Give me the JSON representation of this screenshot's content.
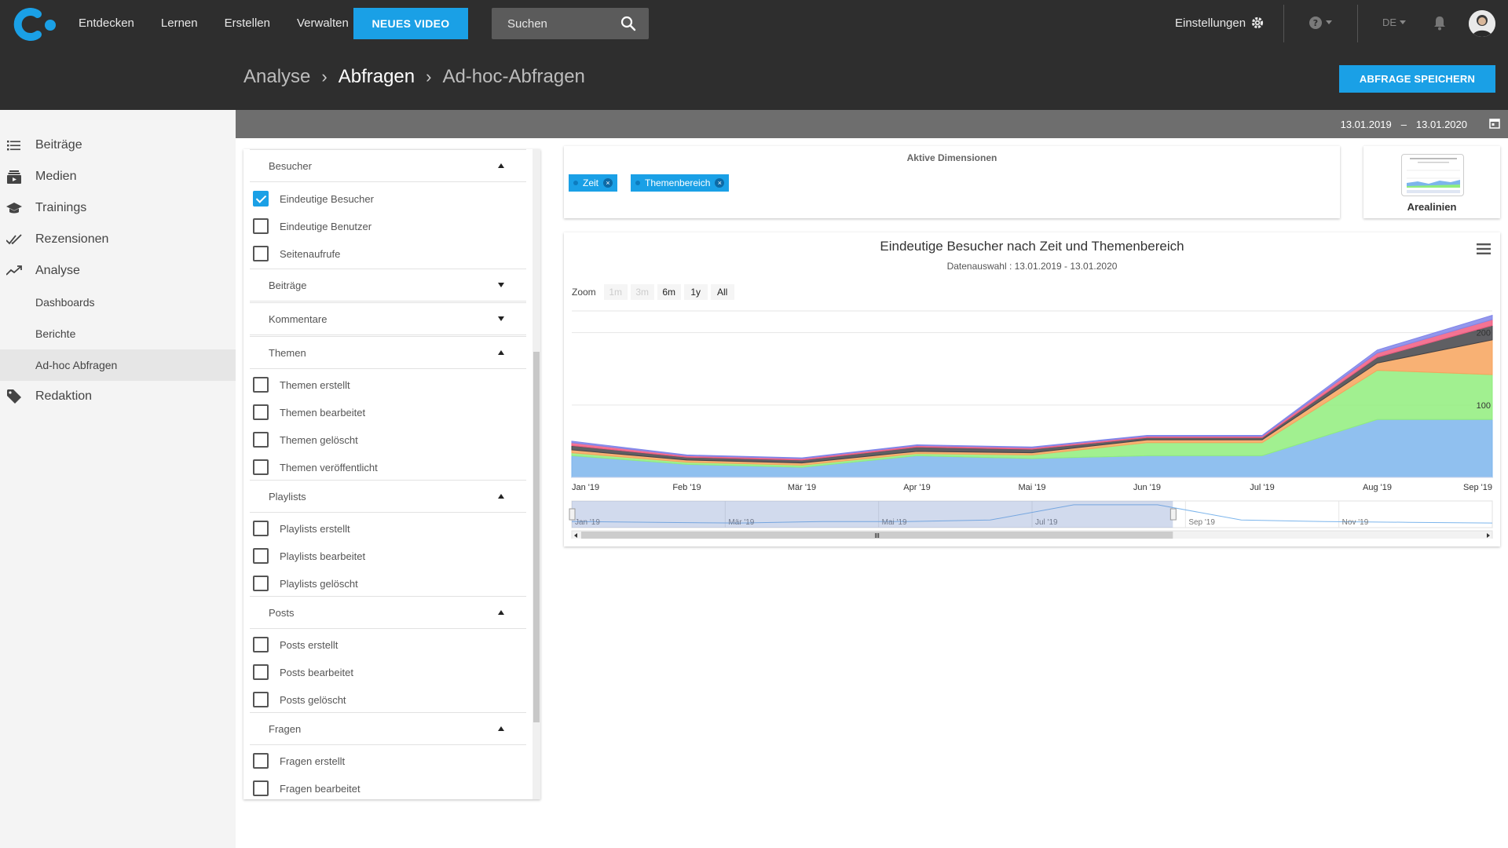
{
  "header": {
    "nav": [
      "Entdecken",
      "Lernen",
      "Erstellen",
      "Verwalten"
    ],
    "new_video_label": "NEUES VIDEO",
    "search_placeholder": "Suchen",
    "settings_label": "Einstellungen",
    "language": "DE"
  },
  "breadcrumb": {
    "items": [
      "Analyse",
      "Abfragen",
      "Ad-hoc-Abfragen"
    ]
  },
  "save_query_label": "ABFRAGE SPEICHERN",
  "date_range": {
    "from": "13.01.2019",
    "sep": "–",
    "to": "13.01.2020"
  },
  "sidebar": {
    "items": [
      {
        "label": "Beiträge",
        "icon": "list-icon"
      },
      {
        "label": "Medien",
        "icon": "media-icon"
      },
      {
        "label": "Trainings",
        "icon": "graduation-cap-icon"
      },
      {
        "label": "Rezensionen",
        "icon": "double-check-icon"
      },
      {
        "label": "Analyse",
        "icon": "trend-icon"
      },
      {
        "label": "Dashboards"
      },
      {
        "label": "Berichte"
      },
      {
        "label": "Ad-hoc Abfragen",
        "active": true
      },
      {
        "label": "Redaktion",
        "icon": "tag-icon"
      }
    ]
  },
  "filters": {
    "groups": [
      {
        "title": "Besucher",
        "open": true,
        "items": [
          {
            "label": "Eindeutige Besucher",
            "checked": true
          },
          {
            "label": "Eindeutige Benutzer",
            "checked": false
          },
          {
            "label": "Seitenaufrufe",
            "checked": false
          }
        ]
      },
      {
        "title": "Beiträge",
        "open": false,
        "items": []
      },
      {
        "title": "Kommentare",
        "open": false,
        "items": []
      },
      {
        "title": "Themen",
        "open": true,
        "items": [
          {
            "label": "Themen erstellt",
            "checked": false
          },
          {
            "label": "Themen bearbeitet",
            "checked": false
          },
          {
            "label": "Themen gelöscht",
            "checked": false
          },
          {
            "label": "Themen veröffentlicht",
            "checked": false
          }
        ]
      },
      {
        "title": "Playlists",
        "open": true,
        "items": [
          {
            "label": "Playlists erstellt",
            "checked": false
          },
          {
            "label": "Playlists bearbeitet",
            "checked": false
          },
          {
            "label": "Playlists gelöscht",
            "checked": false
          }
        ]
      },
      {
        "title": "Posts",
        "open": true,
        "items": [
          {
            "label": "Posts erstellt",
            "checked": false
          },
          {
            "label": "Posts bearbeitet",
            "checked": false
          },
          {
            "label": "Posts gelöscht",
            "checked": false
          }
        ]
      },
      {
        "title": "Fragen",
        "open": true,
        "items": [
          {
            "label": "Fragen erstellt",
            "checked": false
          },
          {
            "label": "Fragen bearbeitet",
            "checked": false
          }
        ]
      }
    ]
  },
  "dimensions": {
    "title": "Aktive Dimensionen",
    "chips": [
      "Zeit",
      "Themenbereich"
    ]
  },
  "chart_type": {
    "label": "Arealinien"
  },
  "chart": {
    "title": "Eindeutige Besucher nach Zeit und Themenbereich",
    "subtitle": "Datenauswahl : 13.01.2019 - 13.01.2020",
    "zoom_label": "Zoom",
    "zoom_buttons": [
      {
        "label": "1m",
        "disabled": true
      },
      {
        "label": "3m",
        "disabled": true
      },
      {
        "label": "6m",
        "disabled": false
      },
      {
        "label": "1y",
        "disabled": false
      },
      {
        "label": "All",
        "disabled": false
      }
    ]
  },
  "chart_data": {
    "type": "area",
    "stacked": true,
    "x": [
      "Jan '19",
      "Feb '19",
      "Mär '19",
      "Apr '19",
      "Mai '19",
      "Jun '19",
      "Jul '19",
      "Aug '19",
      "Sep '19"
    ],
    "y_ticks": [
      100,
      200
    ],
    "ylim": [
      0,
      230
    ],
    "series": [
      {
        "color": "#7cb5ec",
        "values": [
          30,
          18,
          14,
          30,
          26,
          30,
          30,
          80,
          80
        ]
      },
      {
        "color": "#90ed7d",
        "values": [
          4,
          3,
          3,
          3,
          5,
          18,
          18,
          68,
          62
        ]
      },
      {
        "color": "#f7a35c",
        "values": [
          4,
          3,
          3,
          3,
          3,
          4,
          4,
          10,
          48
        ]
      },
      {
        "color": "#434348",
        "values": [
          6,
          4,
          4,
          6,
          5,
          3,
          3,
          8,
          20
        ]
      },
      {
        "color": "#f15c80",
        "values": [
          4,
          2,
          2,
          2,
          2,
          2,
          2,
          6,
          8
        ]
      },
      {
        "color": "#8085e9",
        "values": [
          2,
          1,
          1,
          1,
          1,
          1,
          1,
          4,
          6
        ]
      }
    ],
    "navigator": {
      "labels": [
        "Jan '19",
        "Mär '19",
        "Mai '19",
        "Jul '19",
        "Sep '19",
        "Nov '19"
      ],
      "values": [
        8,
        7,
        6,
        8,
        8,
        10,
        30,
        30,
        10,
        8,
        7,
        6
      ],
      "selection": [
        0,
        0.653
      ]
    },
    "colors": {
      "accent": "#1aa0e6"
    }
  }
}
